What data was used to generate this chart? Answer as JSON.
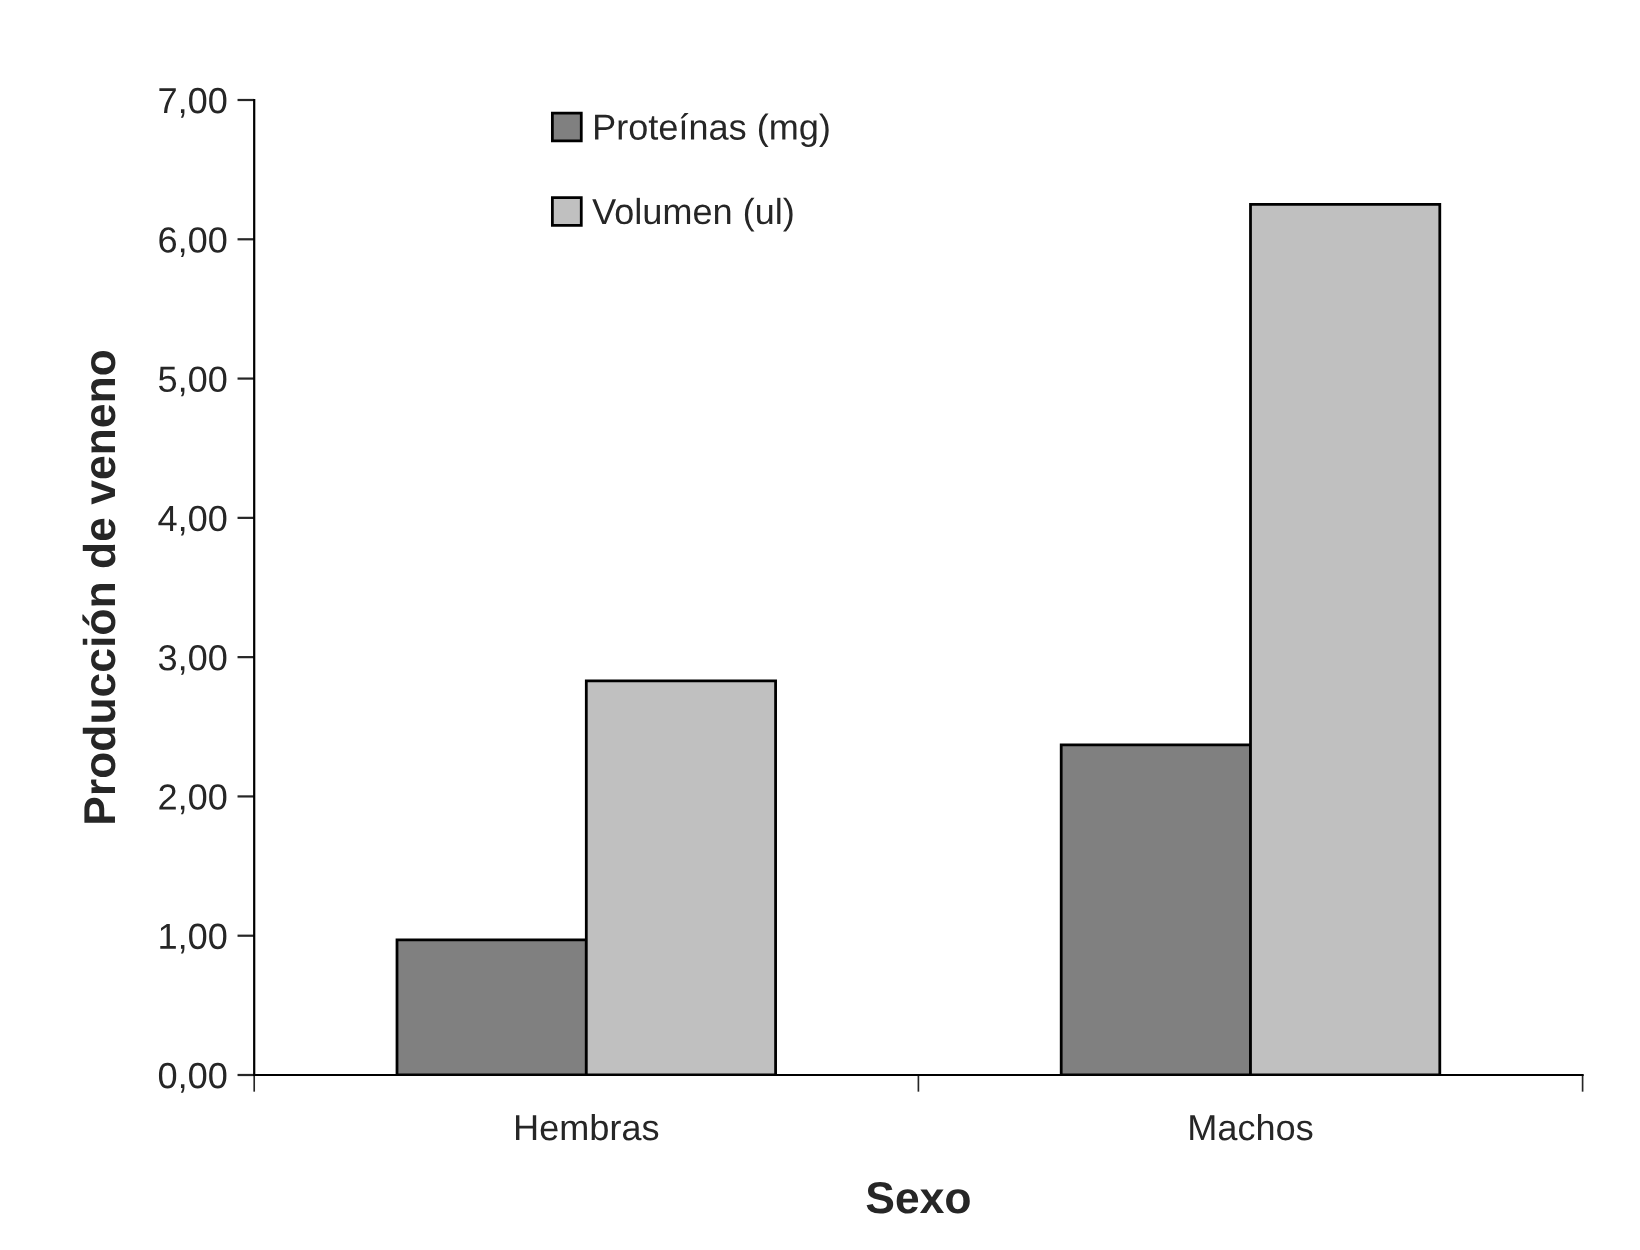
{
  "chart_data": {
    "type": "bar",
    "xlabel": "Sexo",
    "ylabel": "Producción de veneno",
    "categories": [
      "Hembras",
      "Machos"
    ],
    "series": [
      {
        "name": "Proteínas (mg)",
        "color": "#808080",
        "values": [
          0.97,
          2.37
        ]
      },
      {
        "name": "Volumen (ul)",
        "color": "#c0c0c0",
        "values": [
          2.83,
          6.25
        ]
      }
    ],
    "ylim": [
      0,
      7
    ],
    "yticks": [
      {
        "value": 0,
        "label": "0,00"
      },
      {
        "value": 1,
        "label": "1,00"
      },
      {
        "value": 2,
        "label": "2,00"
      },
      {
        "value": 3,
        "label": "3,00"
      },
      {
        "value": 4,
        "label": "4,00"
      },
      {
        "value": 5,
        "label": "5,00"
      },
      {
        "value": 6,
        "label": "6,00"
      },
      {
        "value": 7,
        "label": "7,00"
      }
    ],
    "grid": false,
    "legend": "top left"
  }
}
